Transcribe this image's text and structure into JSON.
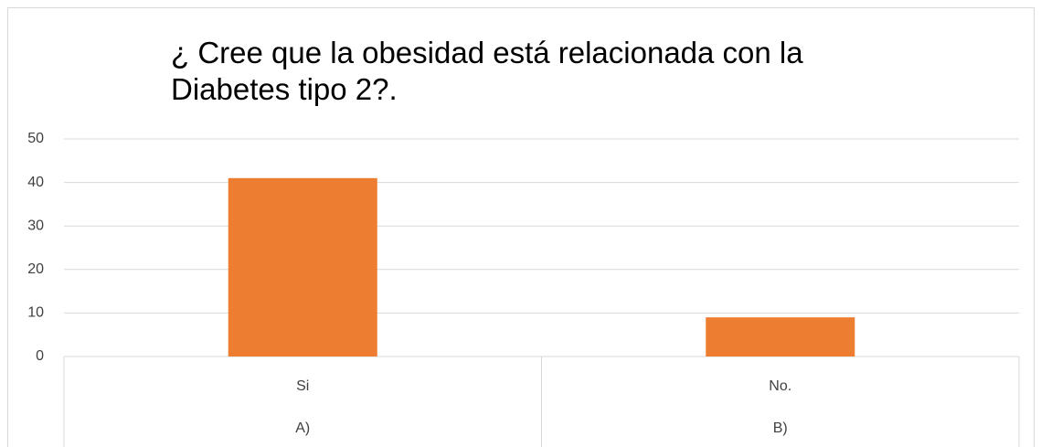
{
  "chart_data": {
    "type": "bar",
    "title": "¿ Cree que la obesidad está relacionada con la Diabetes tipo 2?.",
    "categories": [
      "Si",
      "No."
    ],
    "groups": [
      "A)",
      "B)"
    ],
    "values": [
      41,
      9
    ],
    "color": "#ed7d31",
    "ylim": [
      0,
      50
    ],
    "yticks": [
      0,
      10,
      20,
      30,
      40,
      50
    ],
    "grid": true
  }
}
